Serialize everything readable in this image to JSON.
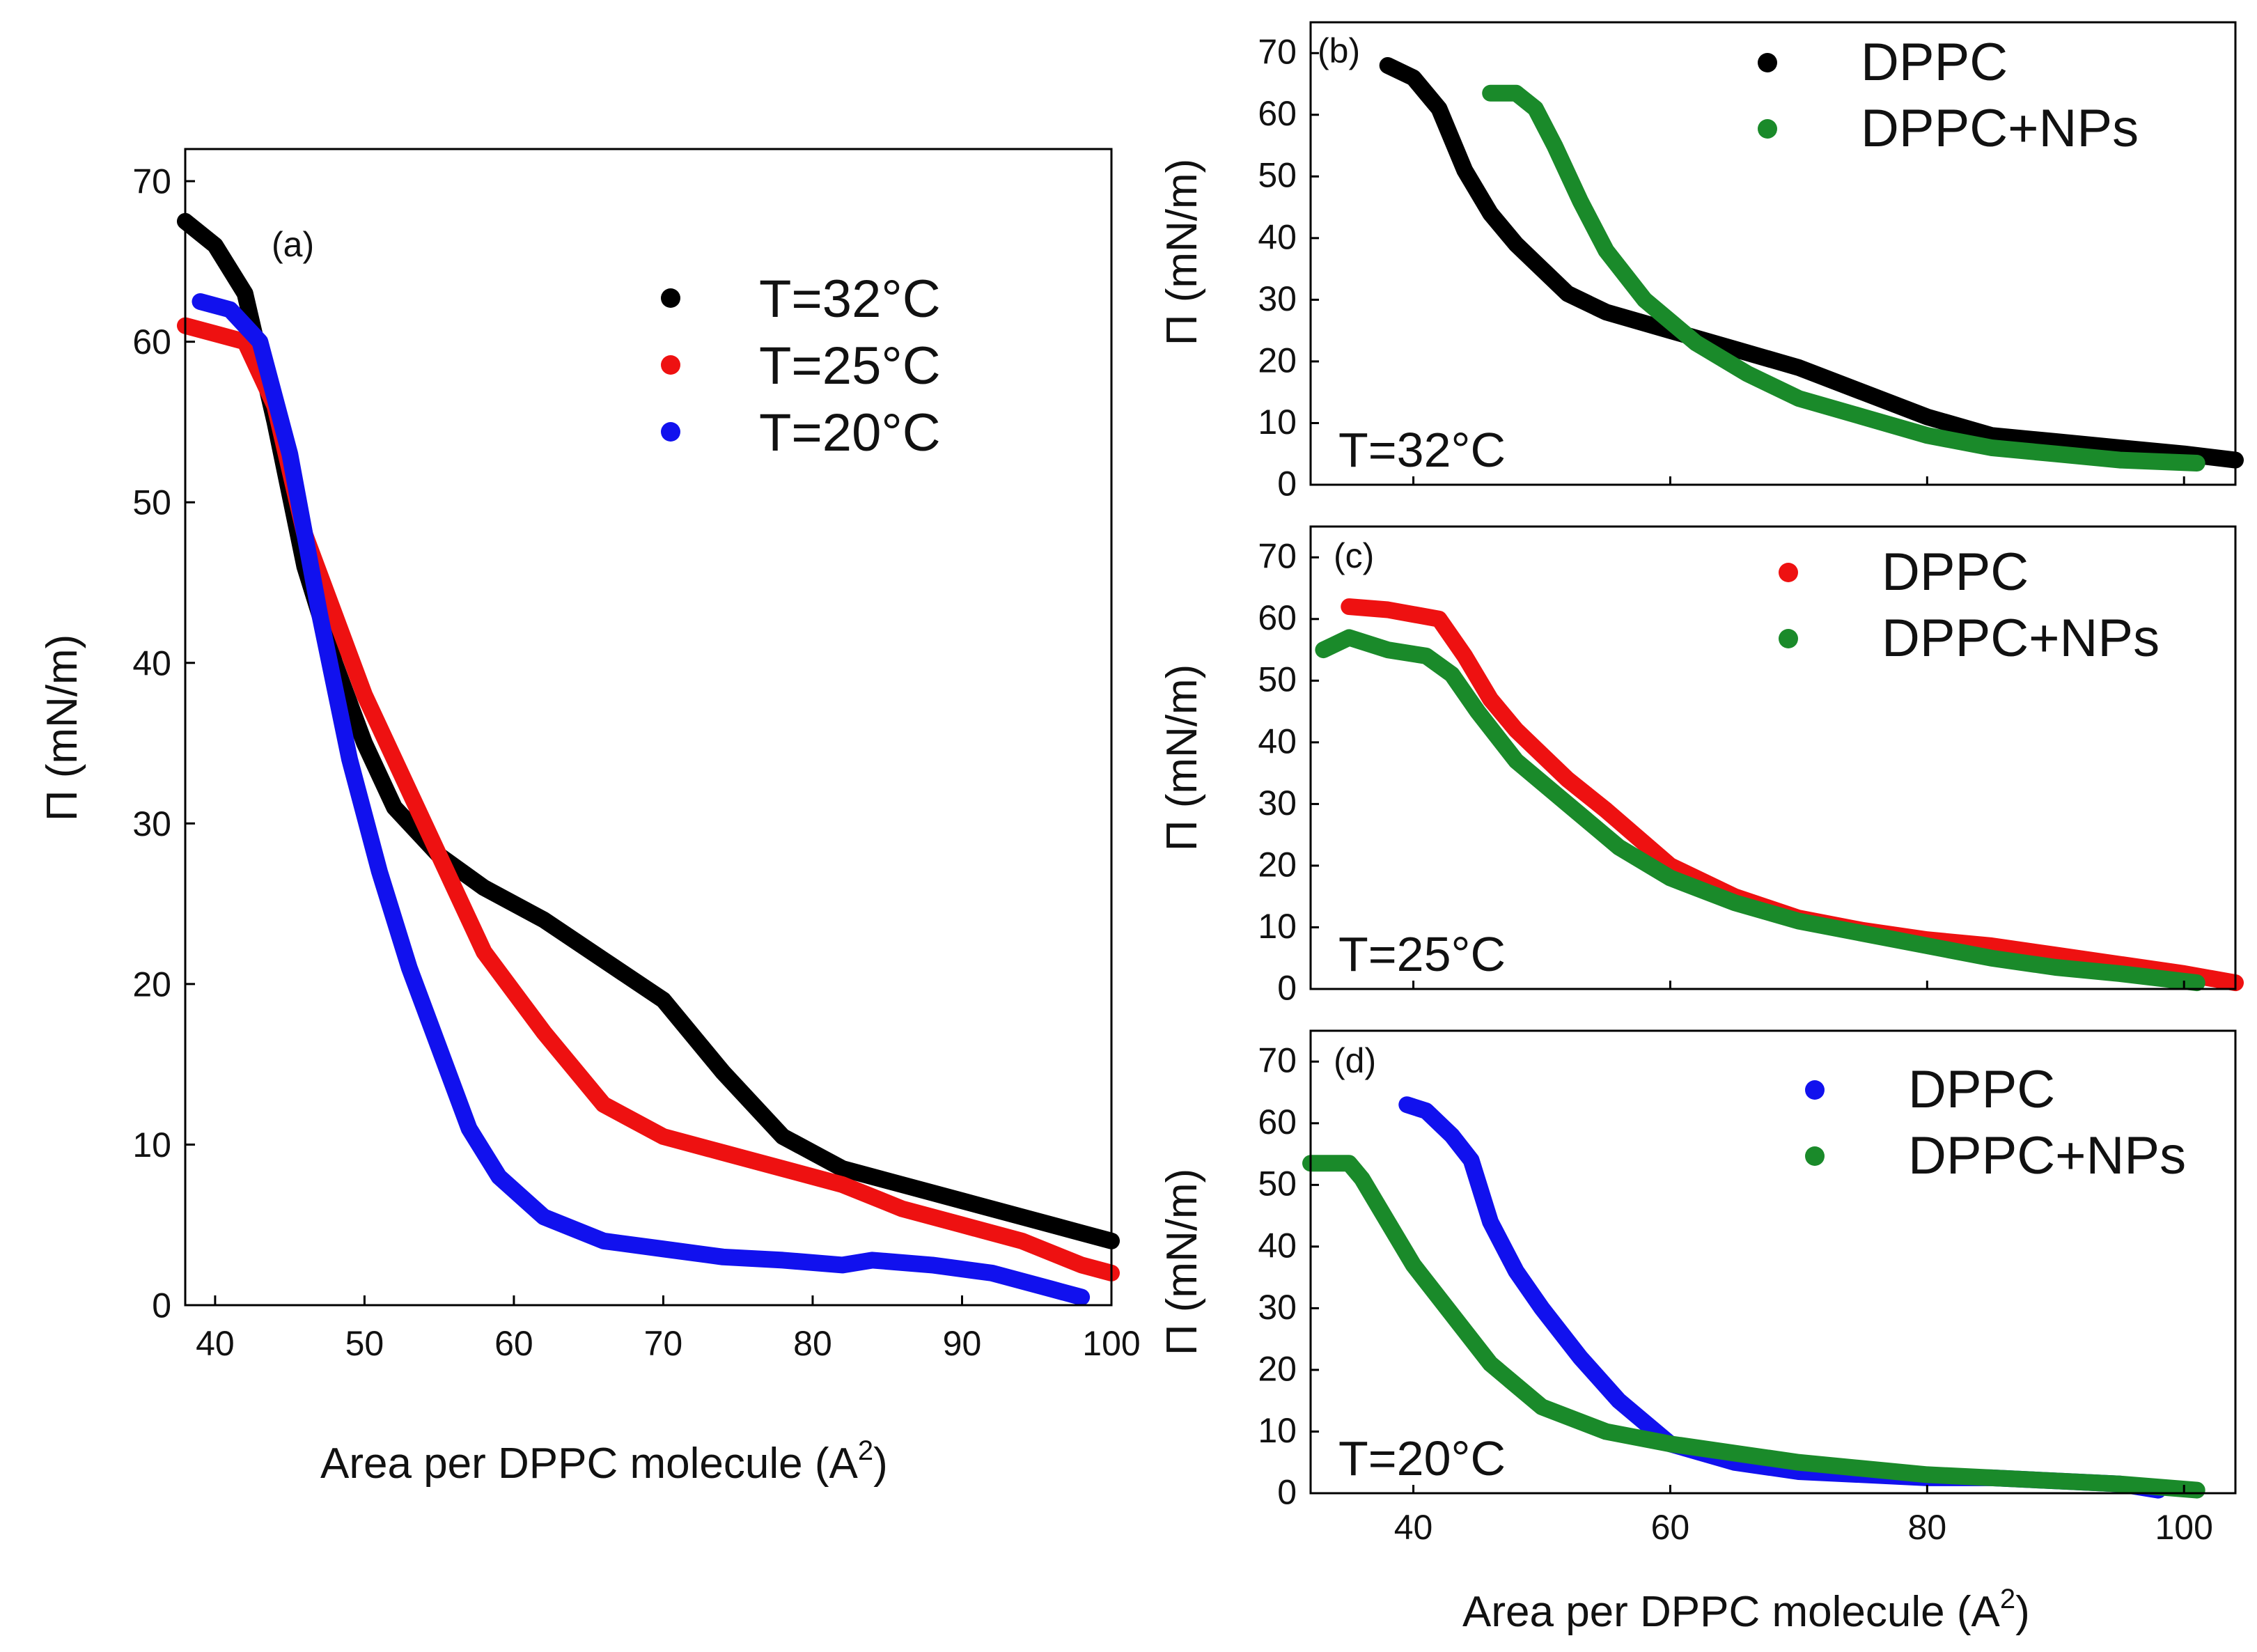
{
  "chart_data": [
    {
      "id": "a",
      "type": "scatter",
      "panel_label": "(a)",
      "xlabel": "Area per DPPC molecule (A",
      "xlabel_sup": "2",
      "xlabel_end": ")",
      "ylabel": "Π (mN/m)",
      "xlim": [
        38,
        100
      ],
      "ylim": [
        0,
        72
      ],
      "xticks": [
        40,
        50,
        60,
        70,
        80,
        90,
        100
      ],
      "yticks": [
        0,
        10,
        20,
        30,
        40,
        50,
        60,
        70
      ],
      "legend_position": "top-right",
      "series": [
        {
          "name": "T=32°C",
          "color": "#000000",
          "x": [
            38,
            40,
            42,
            44,
            46,
            48,
            50,
            52,
            55,
            58,
            62,
            66,
            70,
            74,
            78,
            82,
            86,
            90,
            94,
            98,
            100
          ],
          "y": [
            67.5,
            66,
            63,
            55,
            46,
            40,
            35,
            31,
            28,
            26,
            24,
            21.5,
            19,
            14.5,
            10.5,
            8.5,
            7.5,
            6.5,
            5.5,
            4.5,
            4
          ]
        },
        {
          "name": "T=25°C",
          "color": "#ee1111",
          "x": [
            38,
            40,
            42,
            44,
            46,
            48,
            50,
            52,
            54,
            56,
            58,
            62,
            66,
            70,
            74,
            78,
            82,
            86,
            90,
            94,
            98,
            100
          ],
          "y": [
            61,
            60.5,
            60,
            56,
            48,
            43,
            38,
            34,
            30,
            26,
            22,
            17,
            12.5,
            10.5,
            9.5,
            8.5,
            7.5,
            6,
            5,
            4,
            2.5,
            2
          ]
        },
        {
          "name": "T=20°C",
          "color": "#1111ee",
          "x": [
            39,
            41,
            43,
            45,
            47,
            49,
            51,
            53,
            55,
            57,
            59,
            62,
            66,
            70,
            74,
            78,
            82,
            84,
            88,
            92,
            96,
            98
          ],
          "y": [
            62.5,
            62,
            60,
            53,
            43,
            34,
            27,
            21,
            16,
            11,
            8,
            5.5,
            4,
            3.5,
            3,
            2.8,
            2.5,
            2.8,
            2.5,
            2,
            1,
            0.5
          ]
        }
      ]
    },
    {
      "id": "b",
      "type": "scatter",
      "panel_label": "(b)",
      "temperature_label": "T=32°C",
      "ylabel": "Π (mN/m)",
      "xlim": [
        32,
        104
      ],
      "ylim": [
        0,
        75
      ],
      "xticks": [
        40,
        60,
        80,
        100
      ],
      "yticks": [
        0,
        10,
        20,
        30,
        40,
        50,
        60,
        70
      ],
      "legend_position": "top-right",
      "series": [
        {
          "name": "DPPC",
          "color": "#000000",
          "x": [
            38,
            40,
            42,
            44,
            46,
            48,
            50,
            52,
            55,
            60,
            65,
            70,
            75,
            80,
            85,
            90,
            95,
            100,
            104
          ],
          "y": [
            68,
            66,
            61,
            51,
            44,
            39,
            35,
            31,
            28,
            25,
            22,
            19,
            15,
            11,
            8,
            7,
            6,
            5,
            4
          ]
        },
        {
          "name": "DPPC+NPs",
          "color": "#1a8a2a",
          "x": [
            46,
            48,
            49.5,
            51,
            53,
            55,
            58,
            62,
            66,
            70,
            75,
            80,
            85,
            90,
            95,
            101
          ],
          "y": [
            63.5,
            63.5,
            61,
            55,
            46,
            38,
            30,
            23,
            18,
            14,
            11,
            8,
            6,
            5,
            4,
            3.5
          ]
        }
      ]
    },
    {
      "id": "c",
      "type": "scatter",
      "panel_label": "(c)",
      "temperature_label": "T=25°C",
      "ylabel": "Π (mN/m)",
      "xlim": [
        32,
        104
      ],
      "ylim": [
        0,
        75
      ],
      "xticks": [
        40,
        60,
        80,
        100
      ],
      "yticks": [
        0,
        10,
        20,
        30,
        40,
        50,
        60,
        70
      ],
      "legend_position": "top-right",
      "series": [
        {
          "name": "DPPC",
          "color": "#ee1111",
          "x": [
            35,
            38,
            42,
            44,
            46,
            48,
            50,
            52,
            55,
            60,
            65,
            70,
            75,
            80,
            85,
            90,
            95,
            100,
            104
          ],
          "y": [
            62,
            61.5,
            60,
            54,
            47,
            42,
            38,
            34,
            29,
            20,
            15,
            11.5,
            9.5,
            8,
            7,
            5.5,
            4,
            2.5,
            1
          ]
        },
        {
          "name": "DPPC+NPs",
          "color": "#1a8a2a",
          "x": [
            33,
            35,
            38,
            41,
            43,
            45,
            48,
            52,
            56,
            60,
            65,
            70,
            75,
            80,
            85,
            90,
            95,
            101
          ],
          "y": [
            55,
            57,
            55,
            54,
            51,
            45,
            37,
            30,
            23,
            18,
            14,
            11,
            9,
            7,
            5,
            3.5,
            2.5,
            1
          ]
        }
      ]
    },
    {
      "id": "d",
      "type": "scatter",
      "panel_label": "(d)",
      "temperature_label": "T=20°C",
      "ylabel": "Π (mN/m)",
      "xlabel": "Area per DPPC molecule (A",
      "xlabel_sup": "2",
      "xlabel_end": ")",
      "xlim": [
        32,
        104
      ],
      "ylim": [
        0,
        75
      ],
      "xticks": [
        40,
        60,
        80,
        100
      ],
      "yticks": [
        0,
        10,
        20,
        30,
        40,
        50,
        60,
        70
      ],
      "legend_position": "top-right",
      "series": [
        {
          "name": "DPPC",
          "color": "#1111ee",
          "x": [
            39.5,
            41,
            43,
            44.5,
            46,
            48,
            50,
            53,
            56,
            60,
            65,
            70,
            75,
            80,
            85,
            90,
            95,
            98
          ],
          "y": [
            63,
            62,
            58,
            54,
            44,
            36,
            30,
            22,
            15,
            8,
            5,
            3.5,
            3,
            2.5,
            2.5,
            2,
            1.5,
            0.5
          ]
        },
        {
          "name": "DPPC+NPs",
          "color": "#1a8a2a",
          "x": [
            32,
            35,
            36,
            38,
            40,
            43,
            46,
            50,
            55,
            60,
            65,
            70,
            75,
            80,
            85,
            90,
            95,
            101
          ],
          "y": [
            53.5,
            53.5,
            51,
            44,
            37,
            29,
            21,
            14,
            10,
            8,
            6.5,
            5,
            4,
            3,
            2.5,
            2,
            1.5,
            0.5
          ]
        }
      ]
    }
  ]
}
